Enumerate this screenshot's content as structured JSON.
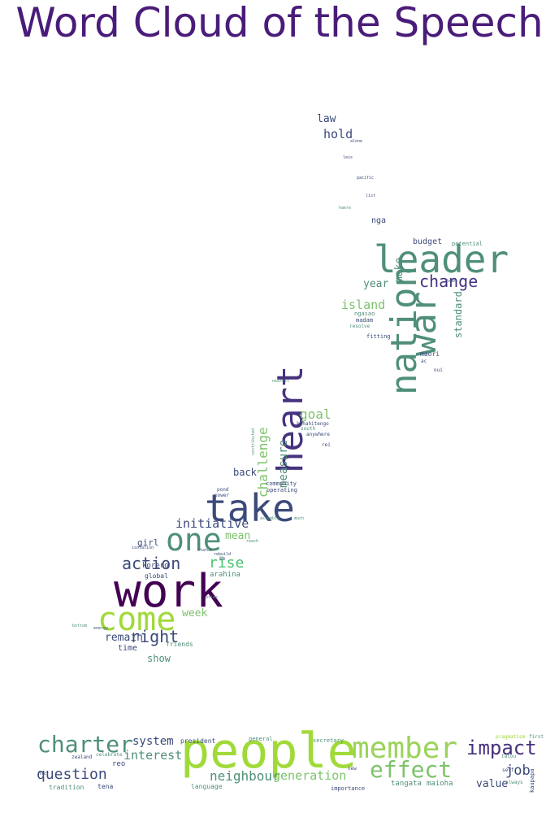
{
  "title": "Word Cloud of the Speech",
  "colors": {
    "title": "#4a1c7a",
    "palette": [
      "#440154",
      "#46327e",
      "#365c8d",
      "#277f8e",
      "#1fa187",
      "#4ac16d",
      "#a0da39",
      "#5e9e7e",
      "#4f8f78"
    ]
  },
  "words": [
    {
      "text": "work",
      "color": "#440154"
    },
    {
      "text": "people",
      "color": "#a0da39"
    },
    {
      "text": "take",
      "color": "#3b4a7a"
    },
    {
      "text": "heart",
      "color": "#46327e"
    },
    {
      "text": "leader",
      "color": "#4f8f78"
    },
    {
      "text": "nation",
      "color": "#4f8f78"
    },
    {
      "text": "war",
      "color": "#4f8f78"
    },
    {
      "text": "one",
      "color": "#4f8f78"
    },
    {
      "text": "come",
      "color": "#a0da39"
    },
    {
      "text": "member",
      "color": "#9bd35b"
    },
    {
      "text": "charter",
      "color": "#4f8f78"
    },
    {
      "text": "impact",
      "color": "#46327e"
    },
    {
      "text": "effect",
      "color": "#7cc36a"
    },
    {
      "text": "action",
      "color": "#3b4a7a"
    },
    {
      "text": "neighbour",
      "color": "#4f8f78"
    },
    {
      "text": "question",
      "color": "#3b4a7a"
    },
    {
      "text": "change",
      "color": "#46327e"
    },
    {
      "text": "right",
      "color": "#3b4a7a"
    },
    {
      "text": "rise",
      "color": "#4ac16d"
    },
    {
      "text": "initiative",
      "color": "#3b4a7a"
    },
    {
      "text": "generation",
      "color": "#7cc36a"
    },
    {
      "text": "island",
      "color": "#7cc36a"
    },
    {
      "text": "challenge",
      "color": "#7cc36a"
    },
    {
      "text": "measure",
      "color": "#4f8f78"
    },
    {
      "text": "goal",
      "color": "#7cc36a"
    },
    {
      "text": "job",
      "color": "#3b4a7a"
    },
    {
      "text": "system",
      "color": "#3b4a7a"
    },
    {
      "text": "interest",
      "color": "#4f8f78"
    },
    {
      "text": "hold",
      "color": "#3b4a7a"
    },
    {
      "text": "law",
      "color": "#3b4a7a"
    },
    {
      "text": "year",
      "color": "#4f8f78"
    },
    {
      "text": "make",
      "color": "#4f8f78"
    },
    {
      "text": "standard",
      "color": "#4f8f78"
    },
    {
      "text": "budget",
      "color": "#3b4a7a"
    },
    {
      "text": "mean",
      "color": "#7cc36a"
    },
    {
      "text": "week",
      "color": "#7cc36a"
    },
    {
      "text": "remain",
      "color": "#3b4a7a"
    },
    {
      "text": "show",
      "color": "#4f8f78"
    },
    {
      "text": "back",
      "color": "#3b4a7a"
    },
    {
      "text": "girl",
      "color": "#3b4a7a"
    },
    {
      "text": "time",
      "color": "#3b4a7a"
    },
    {
      "text": "value",
      "color": "#3b4a7a"
    },
    {
      "text": "reo",
      "color": "#3b4a7a"
    },
    {
      "text": "president",
      "color": "#3b4a7a"
    },
    {
      "text": "maori",
      "color": "#3b4a7a"
    },
    {
      "text": "potential",
      "color": "#4f8f78"
    },
    {
      "text": "nga",
      "color": "#3b4a7a"
    },
    {
      "text": "arahina",
      "color": "#4f8f78"
    },
    {
      "text": "friends",
      "color": "#4f8f78"
    },
    {
      "text": "korero",
      "color": "#3b4a7a"
    },
    {
      "text": "global",
      "color": "#3b4a7a"
    },
    {
      "text": "general",
      "color": "#4f8f78"
    },
    {
      "text": "secretary",
      "color": "#4f8f78"
    },
    {
      "text": "tradition",
      "color": "#4f8f78"
    },
    {
      "text": "language",
      "color": "#4f8f78"
    },
    {
      "text": "importance",
      "color": "#3b4a7a"
    },
    {
      "text": "tangata",
      "color": "#4f8f78"
    },
    {
      "text": "maioha",
      "color": "#4f8f78"
    },
    {
      "text": "tena",
      "color": "#3b4a7a"
    },
    {
      "text": "community",
      "color": "#3b4a7a"
    },
    {
      "text": "operating",
      "color": "#3b4a7a"
    },
    {
      "text": "pond",
      "color": "#3b4a7a"
    },
    {
      "text": "power",
      "color": "#3b4a7a"
    },
    {
      "text": "kaupapa",
      "color": "#3b4a7a"
    },
    {
      "text": "always",
      "color": "#4f8f78"
    },
    {
      "text": "pragmatism",
      "color": "#a0da39"
    },
    {
      "text": "first",
      "color": "#4f8f78"
    },
    {
      "text": "madam",
      "color": "#3b4a7a"
    },
    {
      "text": "ngasao",
      "color": "#4f8f78"
    },
    {
      "text": "resolve",
      "color": "#4f8f78"
    },
    {
      "text": "fitting",
      "color": "#3b4a7a"
    },
    {
      "text": "south",
      "color": "#4f8f78"
    },
    {
      "text": "kohahitengo",
      "color": "#3b4a7a"
    },
    {
      "text": "anywhere",
      "color": "#3b4a7a"
    },
    {
      "text": "nearest",
      "color": "#4f8f78"
    },
    {
      "text": "contributed",
      "color": "#4f8f78"
    },
    {
      "text": "zealand",
      "color": "#3b4a7a"
    },
    {
      "text": "celebrate",
      "color": "#4f8f78"
    },
    {
      "text": "new",
      "color": "#3b4a7a"
    },
    {
      "text": "self",
      "color": "#3b4a7a"
    },
    {
      "text": "tatou",
      "color": "#4f8f78"
    },
    {
      "text": "rebuild",
      "color": "#3b4a7a"
    },
    {
      "text": "reach",
      "color": "#4f8f78"
    },
    {
      "text": "assembly",
      "color": "#4f8f78"
    },
    {
      "text": "much",
      "color": "#4f8f78"
    },
    {
      "text": "isolation",
      "color": "#3b4a7a"
    },
    {
      "text": "status",
      "color": "#3b4a7a"
    },
    {
      "text": "bottom",
      "color": "#4f8f78"
    },
    {
      "text": "energy",
      "color": "#3b4a7a"
    },
    {
      "text": "pride",
      "color": "#4f8f78"
    },
    {
      "text": "doubt",
      "color": "#3b4a7a"
    },
    {
      "text": "less",
      "color": "#3b4a7a"
    },
    {
      "text": "alone",
      "color": "#3b4a7a"
    },
    {
      "text": "pacific",
      "color": "#3b4a7a"
    },
    {
      "text": "list",
      "color": "#3b4a7a"
    },
    {
      "text": "ac",
      "color": "#3b4a7a"
    },
    {
      "text": "ke",
      "color": "#3b4a7a"
    },
    {
      "text": "nui",
      "color": "#3b4a7a"
    },
    {
      "text": "rei",
      "color": "#3b4a7a"
    },
    {
      "text": "fact",
      "color": "#3b4a7a"
    },
    {
      "text": "haere",
      "color": "#4f8f78"
    }
  ]
}
